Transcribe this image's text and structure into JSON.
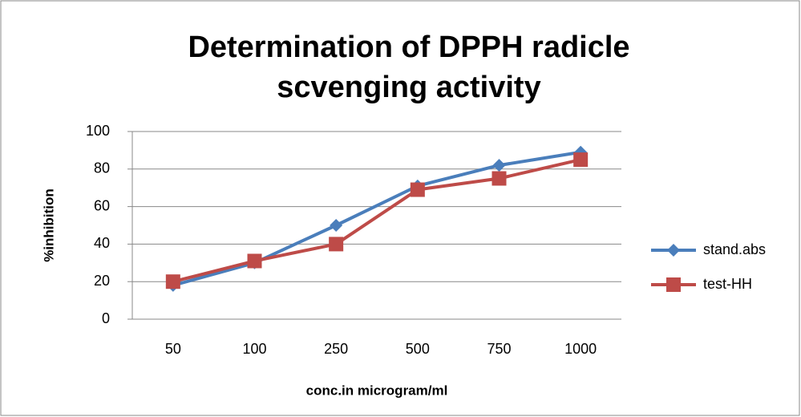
{
  "chart_data": {
    "type": "line",
    "title": "Determination of DPPH radicle scvenging activity",
    "x_label": "conc.in microgram/ml",
    "y_label": "%inhibition",
    "categories": [
      "50",
      "100",
      "250",
      "500",
      "750",
      "1000"
    ],
    "series": [
      {
        "name": "stand.abs",
        "color": "#4a7ebb",
        "marker": "diamond",
        "values": [
          18,
          30,
          50,
          71,
          82,
          89
        ]
      },
      {
        "name": "test-HH",
        "color": "#be4b48",
        "marker": "square",
        "values": [
          20,
          31,
          40,
          69,
          75,
          85
        ]
      }
    ],
    "ylim": [
      0,
      100
    ],
    "yticks": [
      0,
      20,
      40,
      60,
      80,
      100
    ],
    "grid": true,
    "legend": "right"
  }
}
